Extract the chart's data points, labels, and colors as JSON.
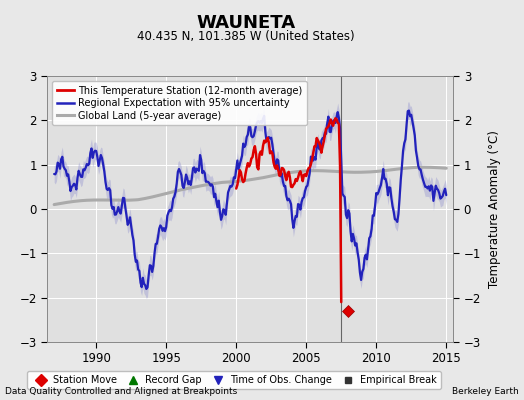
{
  "title": "WAUNETA",
  "subtitle": "40.435 N, 101.385 W (United States)",
  "ylabel": "Temperature Anomaly (°C)",
  "footer_left": "Data Quality Controlled and Aligned at Breakpoints",
  "footer_right": "Berkeley Earth",
  "xlim": [
    1986.5,
    2015.5
  ],
  "ylim": [
    -3,
    3
  ],
  "yticks": [
    -3,
    -2,
    -1,
    0,
    1,
    2,
    3
  ],
  "xticks": [
    1990,
    1995,
    2000,
    2005,
    2010,
    2015
  ],
  "vline_x": 2007.5,
  "station_move_x": 2008.0,
  "station_move_y": -2.3,
  "legend_items": [
    {
      "label": "This Temperature Station (12-month average)",
      "color": "#dd0000",
      "lw": 2.0
    },
    {
      "label": "Regional Expectation with 95% uncertainty",
      "color": "#2222bb",
      "lw": 1.8
    },
    {
      "label": "Global Land (5-year average)",
      "color": "#aaaaaa",
      "lw": 2.2
    }
  ],
  "icon_legend": [
    {
      "label": "Station Move",
      "marker": "D",
      "color": "#dd0000",
      "ms": 6
    },
    {
      "label": "Record Gap",
      "marker": "^",
      "color": "#007700",
      "ms": 6
    },
    {
      "label": "Time of Obs. Change",
      "marker": "v",
      "color": "#2222bb",
      "ms": 6
    },
    {
      "label": "Empirical Break",
      "marker": "s",
      "color": "#333333",
      "ms": 5
    }
  ],
  "background_color": "#e8e8e8",
  "plot_background": "#e0e0e0",
  "grid_color": "#ffffff",
  "uncertainty_color": "#8888cc",
  "uncertainty_alpha": 0.35
}
